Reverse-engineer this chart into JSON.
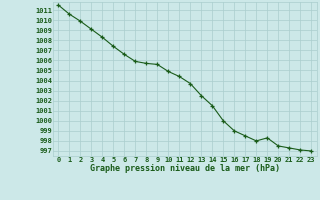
{
  "x": [
    0,
    1,
    2,
    3,
    4,
    5,
    6,
    7,
    8,
    9,
    10,
    11,
    12,
    13,
    14,
    15,
    16,
    17,
    18,
    19,
    20,
    21,
    22,
    23
  ],
  "y": [
    1011.5,
    1010.6,
    1009.9,
    1009.1,
    1008.3,
    1007.4,
    1006.6,
    1005.9,
    1005.7,
    1005.6,
    1004.9,
    1004.4,
    1003.7,
    1002.5,
    1001.5,
    1000.0,
    999.0,
    998.5,
    998.0,
    998.3,
    997.5,
    997.3,
    997.1,
    997.0
  ],
  "bg_color": "#cce8e8",
  "grid_color": "#aacece",
  "line_color": "#1a5c1a",
  "marker_color": "#1a5c1a",
  "xlabel": "Graphe pression niveau de la mer (hPa)",
  "ylabel_ticks": [
    997,
    998,
    999,
    1000,
    1001,
    1002,
    1003,
    1004,
    1005,
    1006,
    1007,
    1008,
    1009,
    1010,
    1011
  ],
  "ylim": [
    996.5,
    1011.8
  ],
  "xlim": [
    -0.5,
    23.5
  ],
  "xticks": [
    0,
    1,
    2,
    3,
    4,
    5,
    6,
    7,
    8,
    9,
    10,
    11,
    12,
    13,
    14,
    15,
    16,
    17,
    18,
    19,
    20,
    21,
    22,
    23
  ],
  "tick_fontsize": 5.0,
  "xlabel_fontsize": 6.0
}
